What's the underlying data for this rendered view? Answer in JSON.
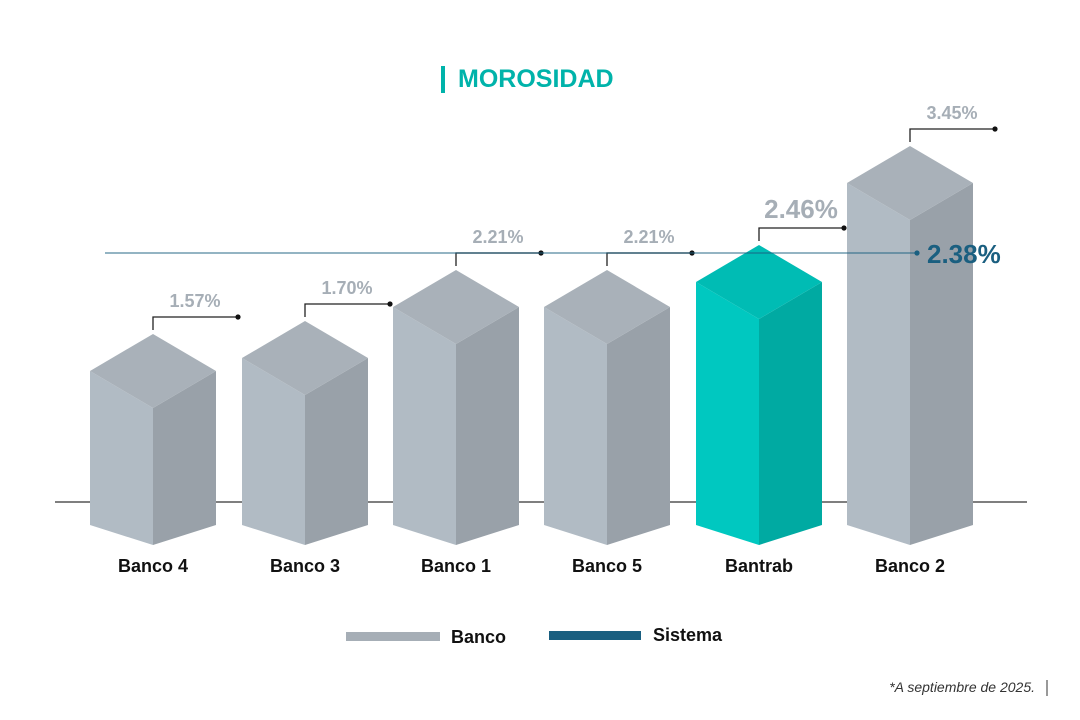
{
  "chart_data": {
    "type": "bar",
    "title": "MOROSIDAD",
    "categories": [
      "Banco 4",
      "Banco 3",
      "Banco 1",
      "Banco 5",
      "Bantrab",
      "Banco 2"
    ],
    "values": [
      1.57,
      1.7,
      2.21,
      2.21,
      2.46,
      3.45
    ],
    "value_labels": [
      "1.57%",
      "1.70%",
      "2.21%",
      "2.21%",
      "2.46%",
      "3.45%"
    ],
    "highlight": "Bantrab",
    "reference_line": {
      "name": "Sistema",
      "value": 2.38,
      "label": "2.38%"
    },
    "legend": [
      {
        "label": "Banco",
        "color": "#a6aeb6"
      },
      {
        "label": "Sistema",
        "color": "#1a5f80"
      }
    ],
    "legend_position": "bottom-center",
    "xlabel": "",
    "ylabel": "",
    "grid": false
  },
  "footnote": "*A septiembre de 2025.",
  "colors": {
    "accent": "#00b3aa",
    "system": "#1a5f80",
    "bar_left": "#b1bbc4",
    "bar_right": "#99a1a9",
    "bar_top": "#a9b1b9",
    "hl_left": "#00c8c0",
    "hl_right": "#00aaa2",
    "hl_top": "#00bcb4",
    "label": "#a6aeb6"
  }
}
